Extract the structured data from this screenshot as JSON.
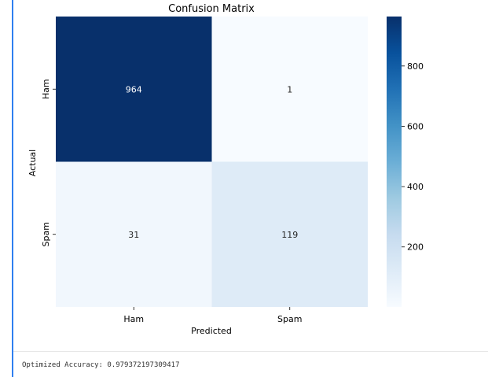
{
  "colors": {
    "cell_gutter": "#2f7ff0",
    "colormap_low": "#f7fbff",
    "colormap_high": "#08306b",
    "colormap_name": "Blues"
  },
  "chart_data": {
    "type": "heatmap",
    "title": "Confusion Matrix",
    "xlabel": "Predicted",
    "ylabel": "Actual",
    "x_categories": [
      "Ham",
      "Spam"
    ],
    "y_categories": [
      "Ham",
      "Spam"
    ],
    "values": [
      [
        964,
        1
      ],
      [
        31,
        119
      ]
    ],
    "annotations": [
      [
        "964",
        "1"
      ],
      [
        "31",
        "119"
      ]
    ],
    "colorbar": {
      "ticks": [
        200,
        400,
        600,
        800
      ],
      "tick_labels": [
        "200",
        "400",
        "600",
        "800"
      ],
      "vmin": 1,
      "vmax": 964
    },
    "colormap": "Blues"
  },
  "output_text": "Optimized Accuracy: 0.979372197309417"
}
